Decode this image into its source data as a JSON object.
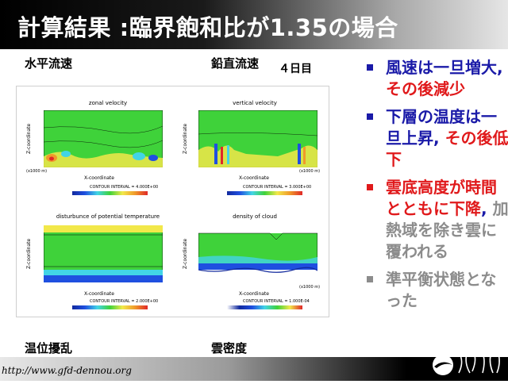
{
  "slide": {
    "title": "計算結果 :臨界飽和比が1.35の場合",
    "labels": {
      "horizontal_velocity": "水平流速",
      "vertical_velocity": "鉛直流速",
      "day": "４日目",
      "potential_temperature": "温位擾乱",
      "cloud_density": "雲密度"
    },
    "figure": {
      "plots": [
        {
          "title": "zonal velocity",
          "xlabel": "X-coordinate",
          "ylabel": "Z-coordinate",
          "contour": "CONTOUR INTERVAL = 4.000E+00",
          "unit_x": "(x1000 m)",
          "unit_z": "(x1000 m)"
        },
        {
          "title": "vertical velocity",
          "xlabel": "X-coordinate",
          "ylabel": "Z-coordinate",
          "contour": "CONTOUR INTERVAL = 3.000E+00",
          "unit_x": "(x1000 m)",
          "unit_z": "(x1000 m)"
        },
        {
          "title": "disturbunce of potential temperature",
          "xlabel": "X-coordinate",
          "ylabel": "Z-coordinate",
          "contour": "CONTOUR INTERVAL = 2.000E+00",
          "unit_x": "(x1000 m)",
          "unit_z": "(x1000 m)"
        },
        {
          "title": "density of cloud",
          "xlabel": "X-coordinate",
          "ylabel": "Z-coordinate",
          "contour": "CONTOUR INTERVAL = 1.000E-04",
          "unit_x": "(x1000 m)",
          "unit_z": "(x1000 m)"
        }
      ],
      "x_ticks": [
        "4",
        "8",
        "12",
        "16",
        "20",
        "24",
        "28",
        "32",
        "36",
        "40",
        "44",
        "48"
      ],
      "z_ticks": [
        "5",
        "10",
        "15"
      ]
    },
    "bullets": [
      {
        "segments": [
          {
            "text": "風速は一旦増大",
            "color": "#1a1aa8"
          },
          {
            "text": ", ",
            "color": "#1a1aa8"
          },
          {
            "text": "その後減少",
            "color": "#e0191b"
          }
        ],
        "marker_color": "#1a1aa8"
      },
      {
        "segments": [
          {
            "text": "下層の温度は一旦上昇",
            "color": "#1a1aa8"
          },
          {
            "text": ", ",
            "color": "#1a1aa8"
          },
          {
            "text": "その後低下",
            "color": "#e0191b"
          }
        ],
        "marker_color": "#1a1aa8"
      },
      {
        "segments": [
          {
            "text": "雲底高度が時間とともに下降",
            "color": "#e0191b"
          },
          {
            "text": ", ",
            "color": "#1a1aa8"
          },
          {
            "text": "加熱域を除き雲に覆われる",
            "color": "#8c8c8c"
          }
        ],
        "marker_color": "#e0191b"
      },
      {
        "segments": [
          {
            "text": "準平衡状態となった",
            "color": "#8c8c8c"
          }
        ],
        "marker_color": "#8c8c8c"
      }
    ],
    "footer_url": "http://www.gfd-dennou.org"
  },
  "colors": {
    "green": "#3fd23a",
    "yellow": "#f2e84a",
    "cyan": "#42d4e6",
    "blue": "#1f4fe0",
    "navy": "#122a9e",
    "orange": "#f09a2a",
    "red": "#e02828"
  }
}
